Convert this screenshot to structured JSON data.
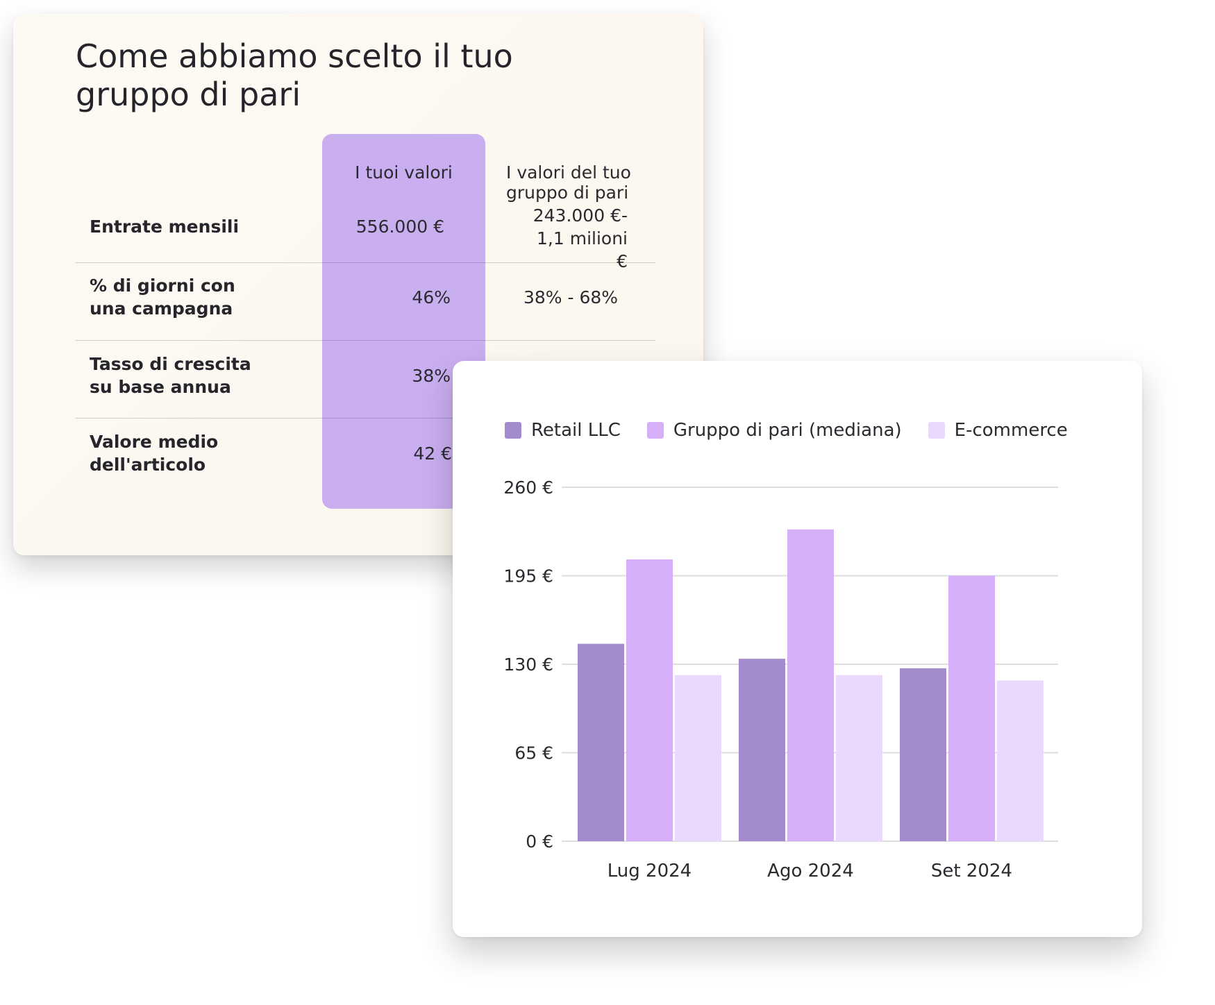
{
  "peer_table": {
    "title": "Come abbiamo scelto il tuo gruppo di pari",
    "col_you": "I tuoi valori",
    "col_peer": "I valori del tuo gruppo di pari",
    "rows": [
      {
        "label": "Entrate mensili",
        "you": "556.000 €",
        "peer": "243.000 €- 1,1 milioni €"
      },
      {
        "label": "% di giorni con una campagna",
        "you": "46%",
        "peer": "38% - 68%"
      },
      {
        "label": "Tasso di crescita su base annua",
        "you": "38%",
        "peer": ""
      },
      {
        "label": "Valore medio dell'articolo",
        "you": "42 €",
        "peer": ""
      }
    ]
  },
  "colors": {
    "you_column": "#c9aef0",
    "retail": "#a48bcb",
    "peer": "#d5b0f8",
    "ecommerce": "#ead9fc",
    "grid": "#dedede"
  },
  "chart_data": {
    "type": "bar",
    "title": "",
    "xlabel": "",
    "ylabel": "",
    "categories": [
      "Lug 2024",
      "Ago 2024",
      "Set 2024"
    ],
    "series": [
      {
        "name": "Retail LLC",
        "color_key": "retail",
        "values": [
          145,
          134,
          127
        ]
      },
      {
        "name": "Gruppo di pari (mediana)",
        "color_key": "peer",
        "values": [
          207,
          229,
          195
        ]
      },
      {
        "name": "E-commerce",
        "color_key": "ecommerce",
        "values": [
          122,
          122,
          118
        ]
      }
    ],
    "yticks": [
      0,
      65,
      130,
      195,
      260
    ],
    "ytick_labels": [
      "0 €",
      "65 €",
      "130 €",
      "195 €",
      "260 €"
    ],
    "ylim": [
      0,
      260
    ],
    "grid": true,
    "legend_position": "top"
  }
}
